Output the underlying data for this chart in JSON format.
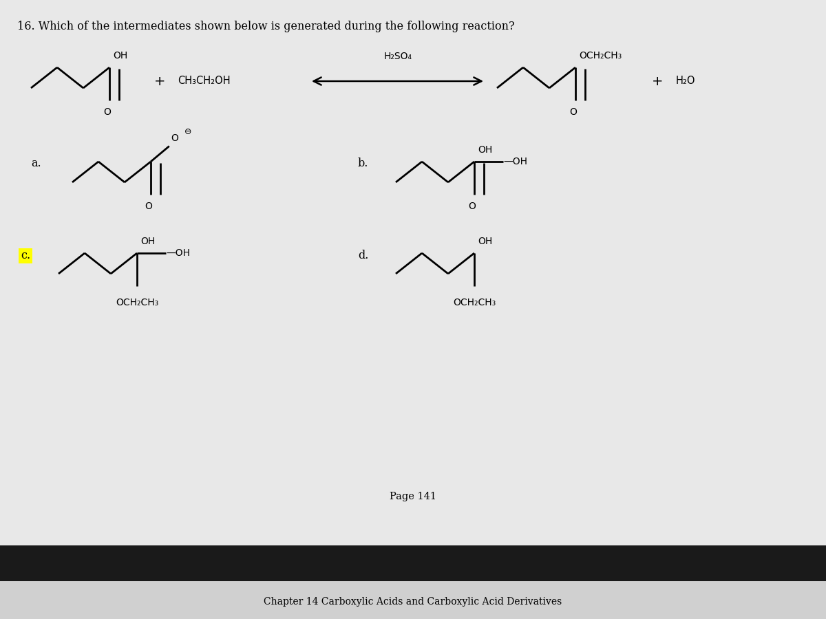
{
  "title": "16. Which of the intermediates shown below is generated during the following reaction?",
  "catalyst": "H₂SO₄",
  "ethanol": "CH₃CH₂OH",
  "water": "H₂O",
  "page": "Page 141",
  "chapter": "Chapter 14 Carboxylic Acids and Carboxylic Acid Derivatives",
  "bg": "#d0d0d0",
  "bar_color": "#1a1a1a",
  "label_c_bg": "#ffff00",
  "lw": 2.0,
  "white_bg": "#e8e8e8"
}
